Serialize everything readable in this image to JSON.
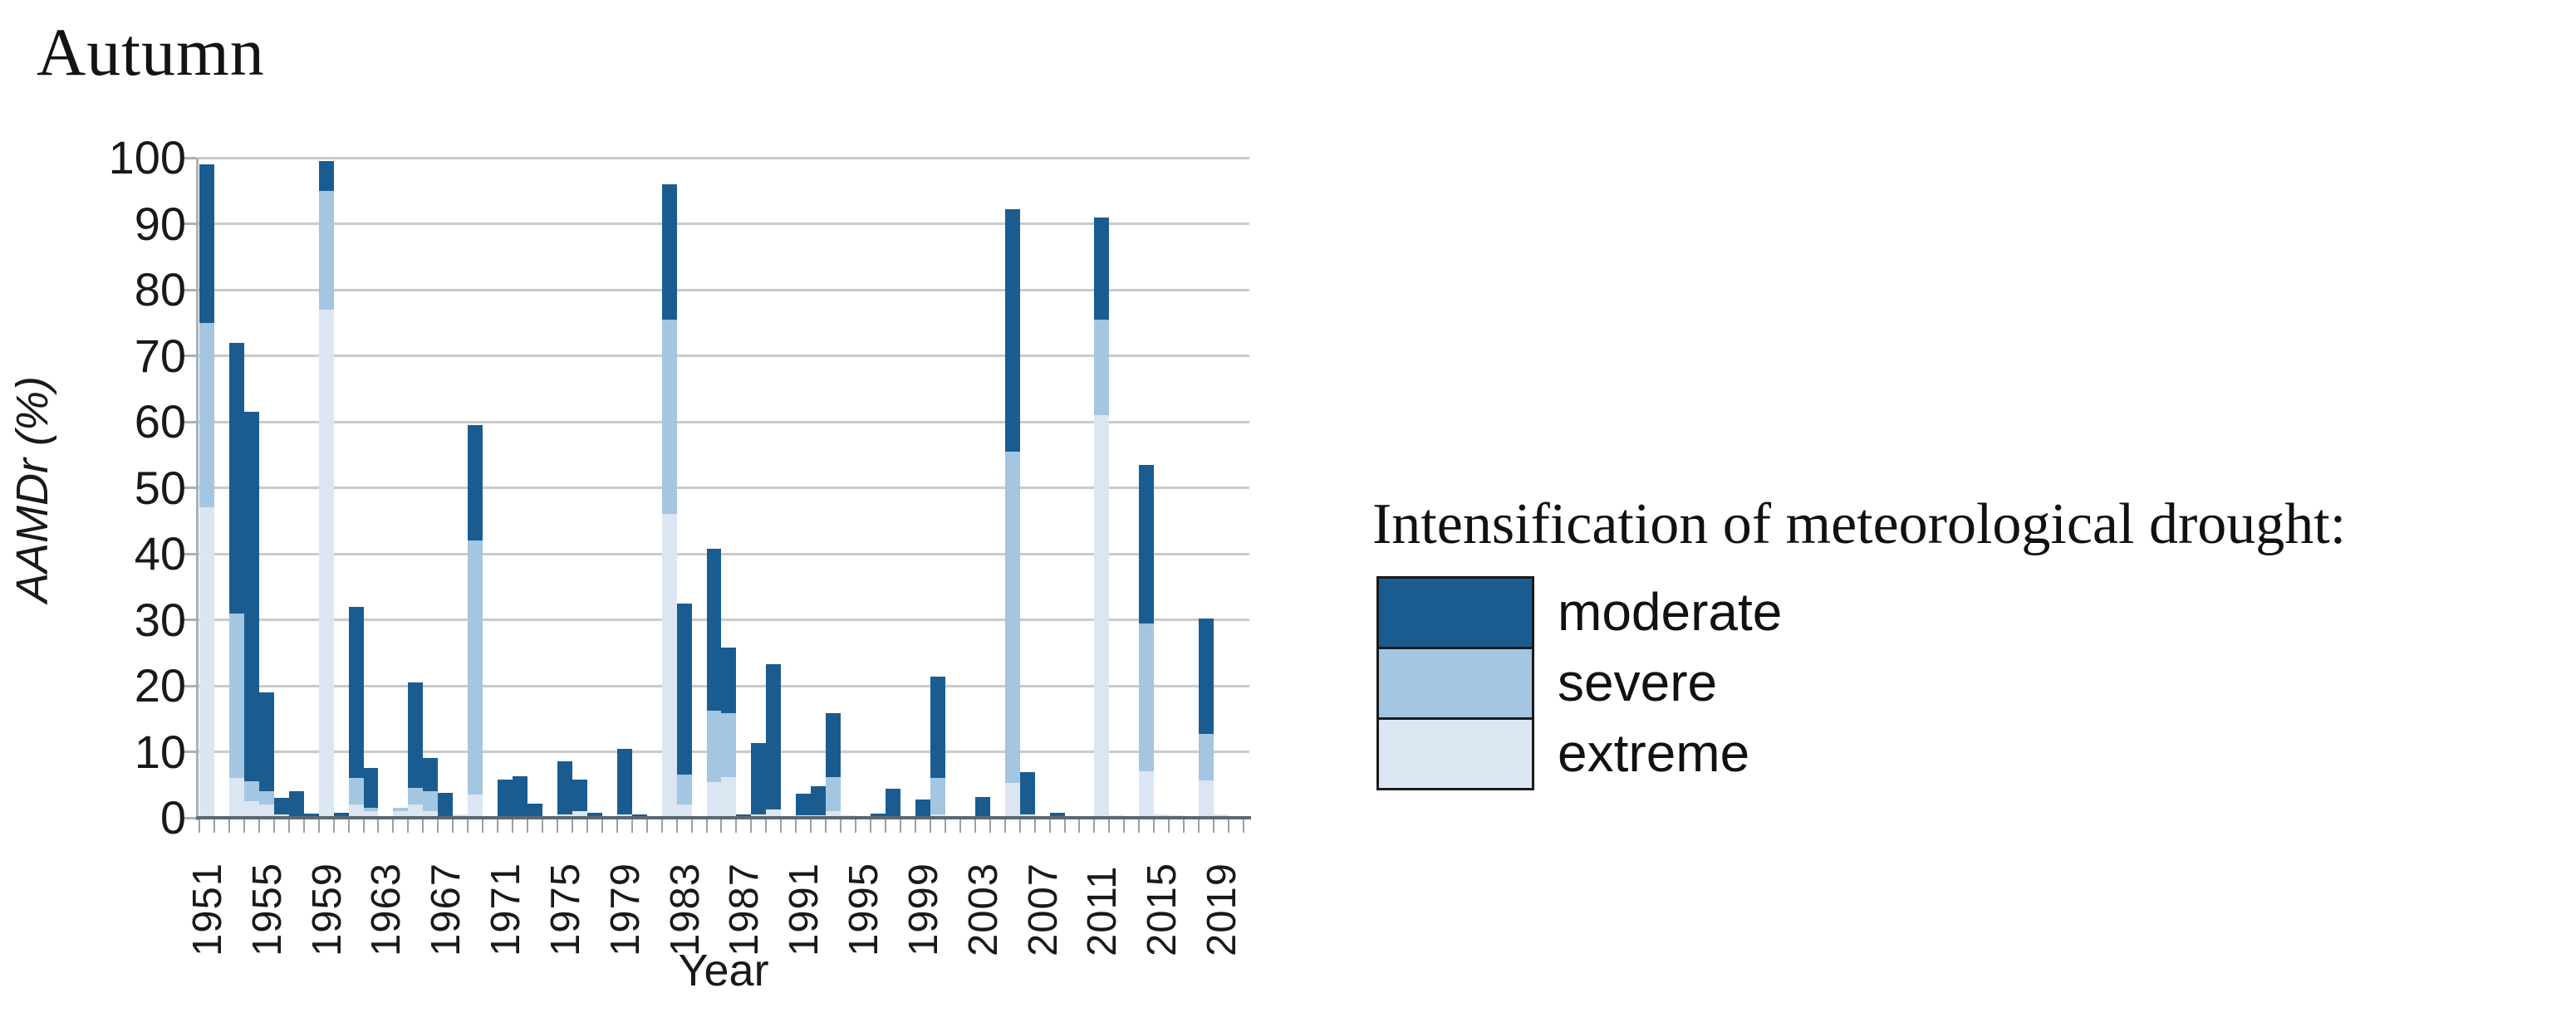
{
  "figure_title": "Autumn",
  "legend": {
    "title": "Intensification of meteorological drought:",
    "items": [
      {
        "label": "moderate",
        "color": "#1b5c90"
      },
      {
        "label": "severe",
        "color": "#a3c6e2"
      },
      {
        "label": "extreme",
        "color": "#dbe6f2"
      }
    ]
  },
  "chart_data": {
    "type": "bar",
    "stacked": true,
    "title": "Autumn",
    "xlabel": "Year",
    "ylabel": "AAMDr (%)",
    "ylim": [
      0,
      100
    ],
    "ytick_step": 10,
    "grid": true,
    "legend_position": "right",
    "stack_order_bottom_to_top": [
      "extreme",
      "severe",
      "moderate"
    ],
    "x_tick_labels": [
      1951,
      1955,
      1959,
      1963,
      1967,
      1971,
      1975,
      1979,
      1983,
      1987,
      1991,
      1995,
      1999,
      2003,
      2007,
      2011,
      2015,
      2019
    ],
    "years": [
      1951,
      1952,
      1953,
      1954,
      1955,
      1956,
      1957,
      1958,
      1959,
      1960,
      1961,
      1962,
      1963,
      1964,
      1965,
      1966,
      1967,
      1968,
      1969,
      1970,
      1971,
      1972,
      1973,
      1974,
      1975,
      1976,
      1977,
      1978,
      1979,
      1980,
      1981,
      1982,
      1983,
      1984,
      1985,
      1986,
      1987,
      1988,
      1989,
      1990,
      1991,
      1992,
      1993,
      1994,
      1995,
      1996,
      1997,
      1998,
      1999,
      2000,
      2001,
      2002,
      2003,
      2004,
      2005,
      2006,
      2007,
      2008,
      2009,
      2010,
      2011,
      2012,
      2013,
      2014,
      2015,
      2016,
      2017,
      2018,
      2019,
      2020
    ],
    "series": [
      {
        "name": "extreme",
        "color": "#dbe6f2",
        "values": [
          47,
          0,
          6,
          2.5,
          2,
          0.5,
          0,
          0,
          77,
          0,
          2,
          1,
          0.3,
          1,
          2,
          1,
          0.3,
          0.5,
          3.5,
          0,
          0.3,
          0.3,
          0,
          0.2,
          0.5,
          1,
          0.3,
          0.2,
          0.5,
          0.2,
          0.3,
          46,
          2,
          0.3,
          5.4,
          6.2,
          0,
          0.5,
          1.3,
          0.3,
          0.4,
          0.4,
          1,
          0.4,
          0,
          0.2,
          0,
          0.2,
          0,
          0.5,
          0.2,
          0,
          0,
          0.2,
          5.3,
          0.5,
          0,
          0,
          0.2,
          0.3,
          61,
          0.4,
          0.2,
          7,
          0.5,
          0.4,
          0.2,
          5.7,
          0.5,
          0
        ]
      },
      {
        "name": "severe",
        "color": "#a3c6e2",
        "values": [
          28,
          0,
          25,
          3,
          2,
          0,
          0,
          0,
          18,
          0,
          4,
          0.5,
          0,
          0.5,
          2.5,
          3,
          0,
          0,
          38.5,
          0,
          0,
          0,
          0,
          0,
          0,
          0,
          0,
          0,
          0,
          0,
          0,
          29.5,
          4.5,
          0,
          10.8,
          9.6,
          0,
          0,
          0,
          0,
          0,
          0,
          5.2,
          0,
          0,
          0,
          0,
          0,
          0,
          5.5,
          0,
          0,
          0,
          0,
          50.2,
          0,
          0,
          0,
          0,
          0,
          14.5,
          0,
          0,
          22.4,
          0,
          0,
          0,
          7,
          0,
          0
        ]
      },
      {
        "name": "moderate",
        "color": "#1b5c90",
        "values": [
          24,
          0.3,
          41,
          56,
          15,
          2.5,
          4,
          0.6,
          4.5,
          0.7,
          26,
          6,
          0,
          0,
          16,
          5,
          3.5,
          0,
          17.5,
          0.3,
          5.5,
          6,
          2.1,
          0,
          8,
          4.8,
          0.4,
          0,
          10,
          0.2,
          0,
          20.5,
          26,
          0,
          24.5,
          10,
          0.5,
          10.8,
          22,
          0,
          3.3,
          4.4,
          9.7,
          0,
          0.3,
          0.4,
          4.4,
          0,
          2.8,
          15.4,
          0,
          0.2,
          3.2,
          0,
          36.7,
          6.4,
          0.3,
          0.7,
          0,
          0,
          15.5,
          0,
          0,
          24.1,
          0,
          0,
          0,
          17.5,
          0,
          0.3
        ]
      }
    ]
  }
}
